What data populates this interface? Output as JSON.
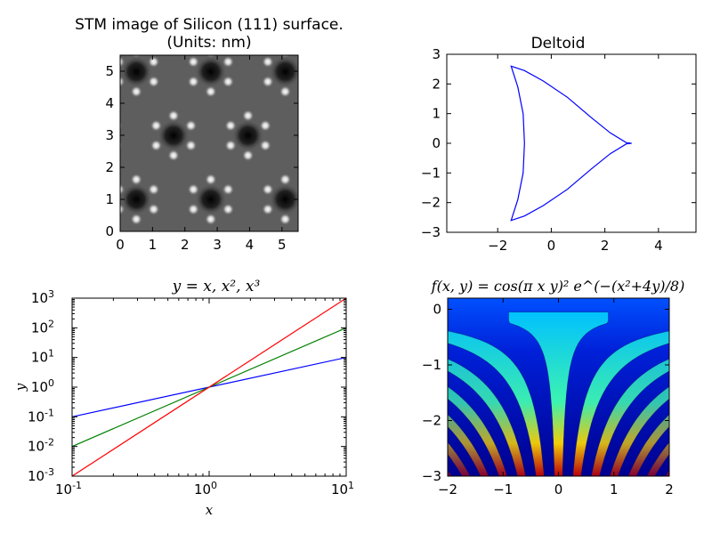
{
  "chart_data": [
    {
      "type": "heatmap",
      "title_line1": "STM image of Silicon (111) surface.",
      "title_line2": "(Units: nm)",
      "xlim": [
        0,
        5.5
      ],
      "ylim": [
        0,
        5.5
      ],
      "xticks": [
        "0",
        "1",
        "2",
        "3",
        "4",
        "5"
      ],
      "yticks": [
        "0",
        "1",
        "2",
        "3",
        "4",
        "5"
      ],
      "colormap": "gray",
      "grid": false
    },
    {
      "type": "line",
      "title": "Deltoid",
      "xlim": [
        -3.9,
        5.4
      ],
      "ylim": [
        -3,
        3
      ],
      "xticks": [
        "−2",
        "0",
        "2",
        "4"
      ],
      "yticks": [
        "3",
        "2",
        "1",
        "0",
        "−1",
        "−2",
        "−3"
      ],
      "series": [
        {
          "color": "#0000ff",
          "cusps": [
            [
              3,
              0
            ],
            [
              -1.5,
              2.598
            ],
            [
              -1.5,
              -2.598
            ]
          ],
          "points": [
            [
              3,
              0
            ],
            [
              2.8,
              0.02
            ],
            [
              2.2,
              0.35
            ],
            [
              1.5,
              0.86
            ],
            [
              0.6,
              1.55
            ],
            [
              -0.3,
              2.1
            ],
            [
              -1.0,
              2.45
            ],
            [
              -1.5,
              2.6
            ],
            [
              -1.25,
              1.9
            ],
            [
              -1.05,
              1.0
            ],
            [
              -1.0,
              0
            ],
            [
              -1.05,
              -1.0
            ],
            [
              -1.25,
              -1.9
            ],
            [
              -1.5,
              -2.6
            ],
            [
              -1.0,
              -2.45
            ],
            [
              -0.3,
              -2.1
            ],
            [
              0.6,
              -1.55
            ],
            [
              1.5,
              -0.86
            ],
            [
              2.2,
              -0.35
            ],
            [
              2.8,
              -0.02
            ],
            [
              3,
              0
            ]
          ]
        }
      ],
      "grid": false
    },
    {
      "type": "line",
      "title": "y = x, x², x³",
      "xlabel": "x",
      "ylabel": "y",
      "xscale": "log",
      "yscale": "log",
      "xlim": [
        0.1,
        10
      ],
      "ylim": [
        0.001,
        1000
      ],
      "xtick_exponents": [
        "-1",
        "0",
        "1"
      ],
      "ytick_exponents": [
        "-3",
        "-2",
        "-1",
        "0",
        "1",
        "2",
        "3"
      ],
      "tick_base": "10",
      "series": [
        {
          "color": "#0000ff",
          "x": [
            0.1,
            10
          ],
          "y": [
            0.1,
            10
          ]
        },
        {
          "color": "#008000",
          "x": [
            0.1,
            10
          ],
          "y": [
            0.01,
            100
          ]
        },
        {
          "color": "#ff0000",
          "x": [
            0.1,
            10
          ],
          "y": [
            0.001,
            1000
          ]
        }
      ],
      "grid": false
    },
    {
      "type": "heatmap",
      "title": "f(x, y) = cos(π x y)² e^(−(x²+4y)/8)",
      "xlim": [
        -2,
        2
      ],
      "ylim": [
        -3,
        0.2
      ],
      "xticks": [
        "−2",
        "−1",
        "0",
        "1",
        "2"
      ],
      "yticks": [
        "0",
        "−1",
        "−2",
        "−3"
      ],
      "colormap": "jet",
      "grid": false
    }
  ]
}
